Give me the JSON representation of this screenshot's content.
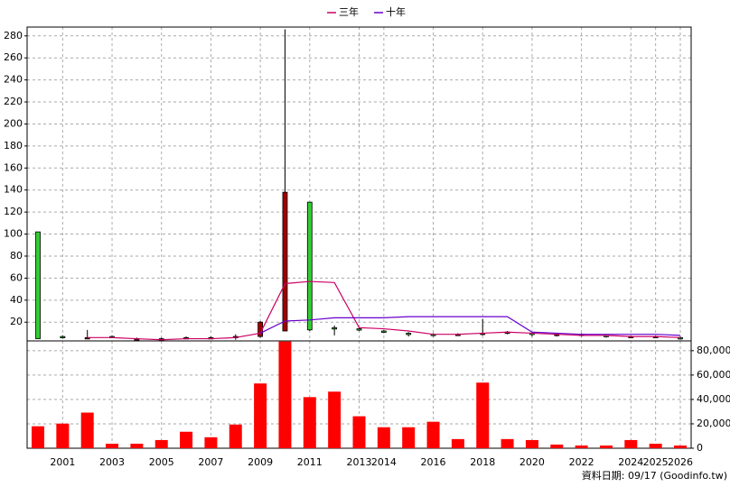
{
  "chart_data": [
    {
      "type": "candlestick",
      "categories": [
        null,
        "2001",
        null,
        "2003",
        null,
        "2005",
        null,
        "2007",
        null,
        "2009",
        null,
        "2011",
        null,
        "2013",
        "2014",
        null,
        "2016",
        null,
        "2018",
        null,
        "2020",
        null,
        "2022",
        null,
        "2024",
        "2025",
        "2026"
      ],
      "open": [
        102,
        7,
        6,
        7,
        5,
        5,
        6,
        6,
        6,
        7,
        12,
        129,
        15,
        14,
        12,
        10,
        9,
        9,
        10,
        11,
        10,
        9,
        9,
        8,
        7,
        7,
        6
      ],
      "high": [
        102,
        8,
        13,
        8,
        6,
        6,
        7,
        7,
        9,
        21,
        286,
        129,
        17,
        15,
        13,
        11,
        10,
        10,
        23,
        12,
        11,
        10,
        10,
        9,
        8,
        8,
        7
      ],
      "low": [
        5,
        5,
        5,
        6,
        4,
        4,
        5,
        5,
        4,
        6,
        12,
        12,
        8,
        12,
        10,
        7,
        7,
        8,
        8,
        9,
        7,
        7,
        7,
        6,
        6,
        6,
        4
      ],
      "close": [
        5,
        6,
        6,
        6,
        5,
        5,
        6,
        6,
        7,
        20,
        138,
        13,
        14,
        13,
        11,
        9,
        8,
        9,
        10,
        11,
        9,
        9,
        9,
        7,
        7,
        7,
        5
      ],
      "up_color": "#a00000",
      "down_color": "#33cc33",
      "series": [
        {
          "name": "三年",
          "color": "#cc0066",
          "values": [
            null,
            null,
            6,
            6,
            5,
            4,
            5,
            5,
            6,
            10,
            55,
            57,
            56,
            15,
            14,
            12,
            9,
            9,
            10,
            11,
            10,
            9,
            8,
            8,
            7,
            7,
            6
          ]
        },
        {
          "name": "十年",
          "color": "#6600cc",
          "values": [
            null,
            null,
            null,
            null,
            null,
            null,
            null,
            null,
            null,
            10,
            21,
            22,
            24,
            24,
            24,
            25,
            25,
            25,
            25,
            25,
            11,
            10,
            9,
            9,
            9,
            9,
            8
          ]
        }
      ],
      "ylim": [
        3,
        288
      ],
      "yticks": [
        20,
        40,
        60,
        80,
        100,
        120,
        140,
        160,
        180,
        200,
        220,
        240,
        260,
        280
      ],
      "grid": true
    },
    {
      "type": "bar",
      "color": "#ff0000",
      "values": [
        18000,
        20200,
        29200,
        3700,
        3700,
        6700,
        13500,
        9000,
        19400,
        53100,
        87500,
        41900,
        46400,
        26200,
        17200,
        17200,
        21700,
        7500,
        53800,
        7500,
        6700,
        3000,
        2200,
        2200,
        6700,
        3700,
        2200
      ],
      "ylim": [
        0,
        88000
      ],
      "yticks": [
        0,
        {
          "value": 20000,
          "label": "20,000"
        },
        {
          "value": 40000,
          "label": "40,000"
        },
        {
          "value": 60000,
          "label": "60,000"
        },
        {
          "value": 80000,
          "label": "80,000"
        }
      ]
    }
  ],
  "footer": "資料日期: 09/17 (Goodinfo.tw)"
}
